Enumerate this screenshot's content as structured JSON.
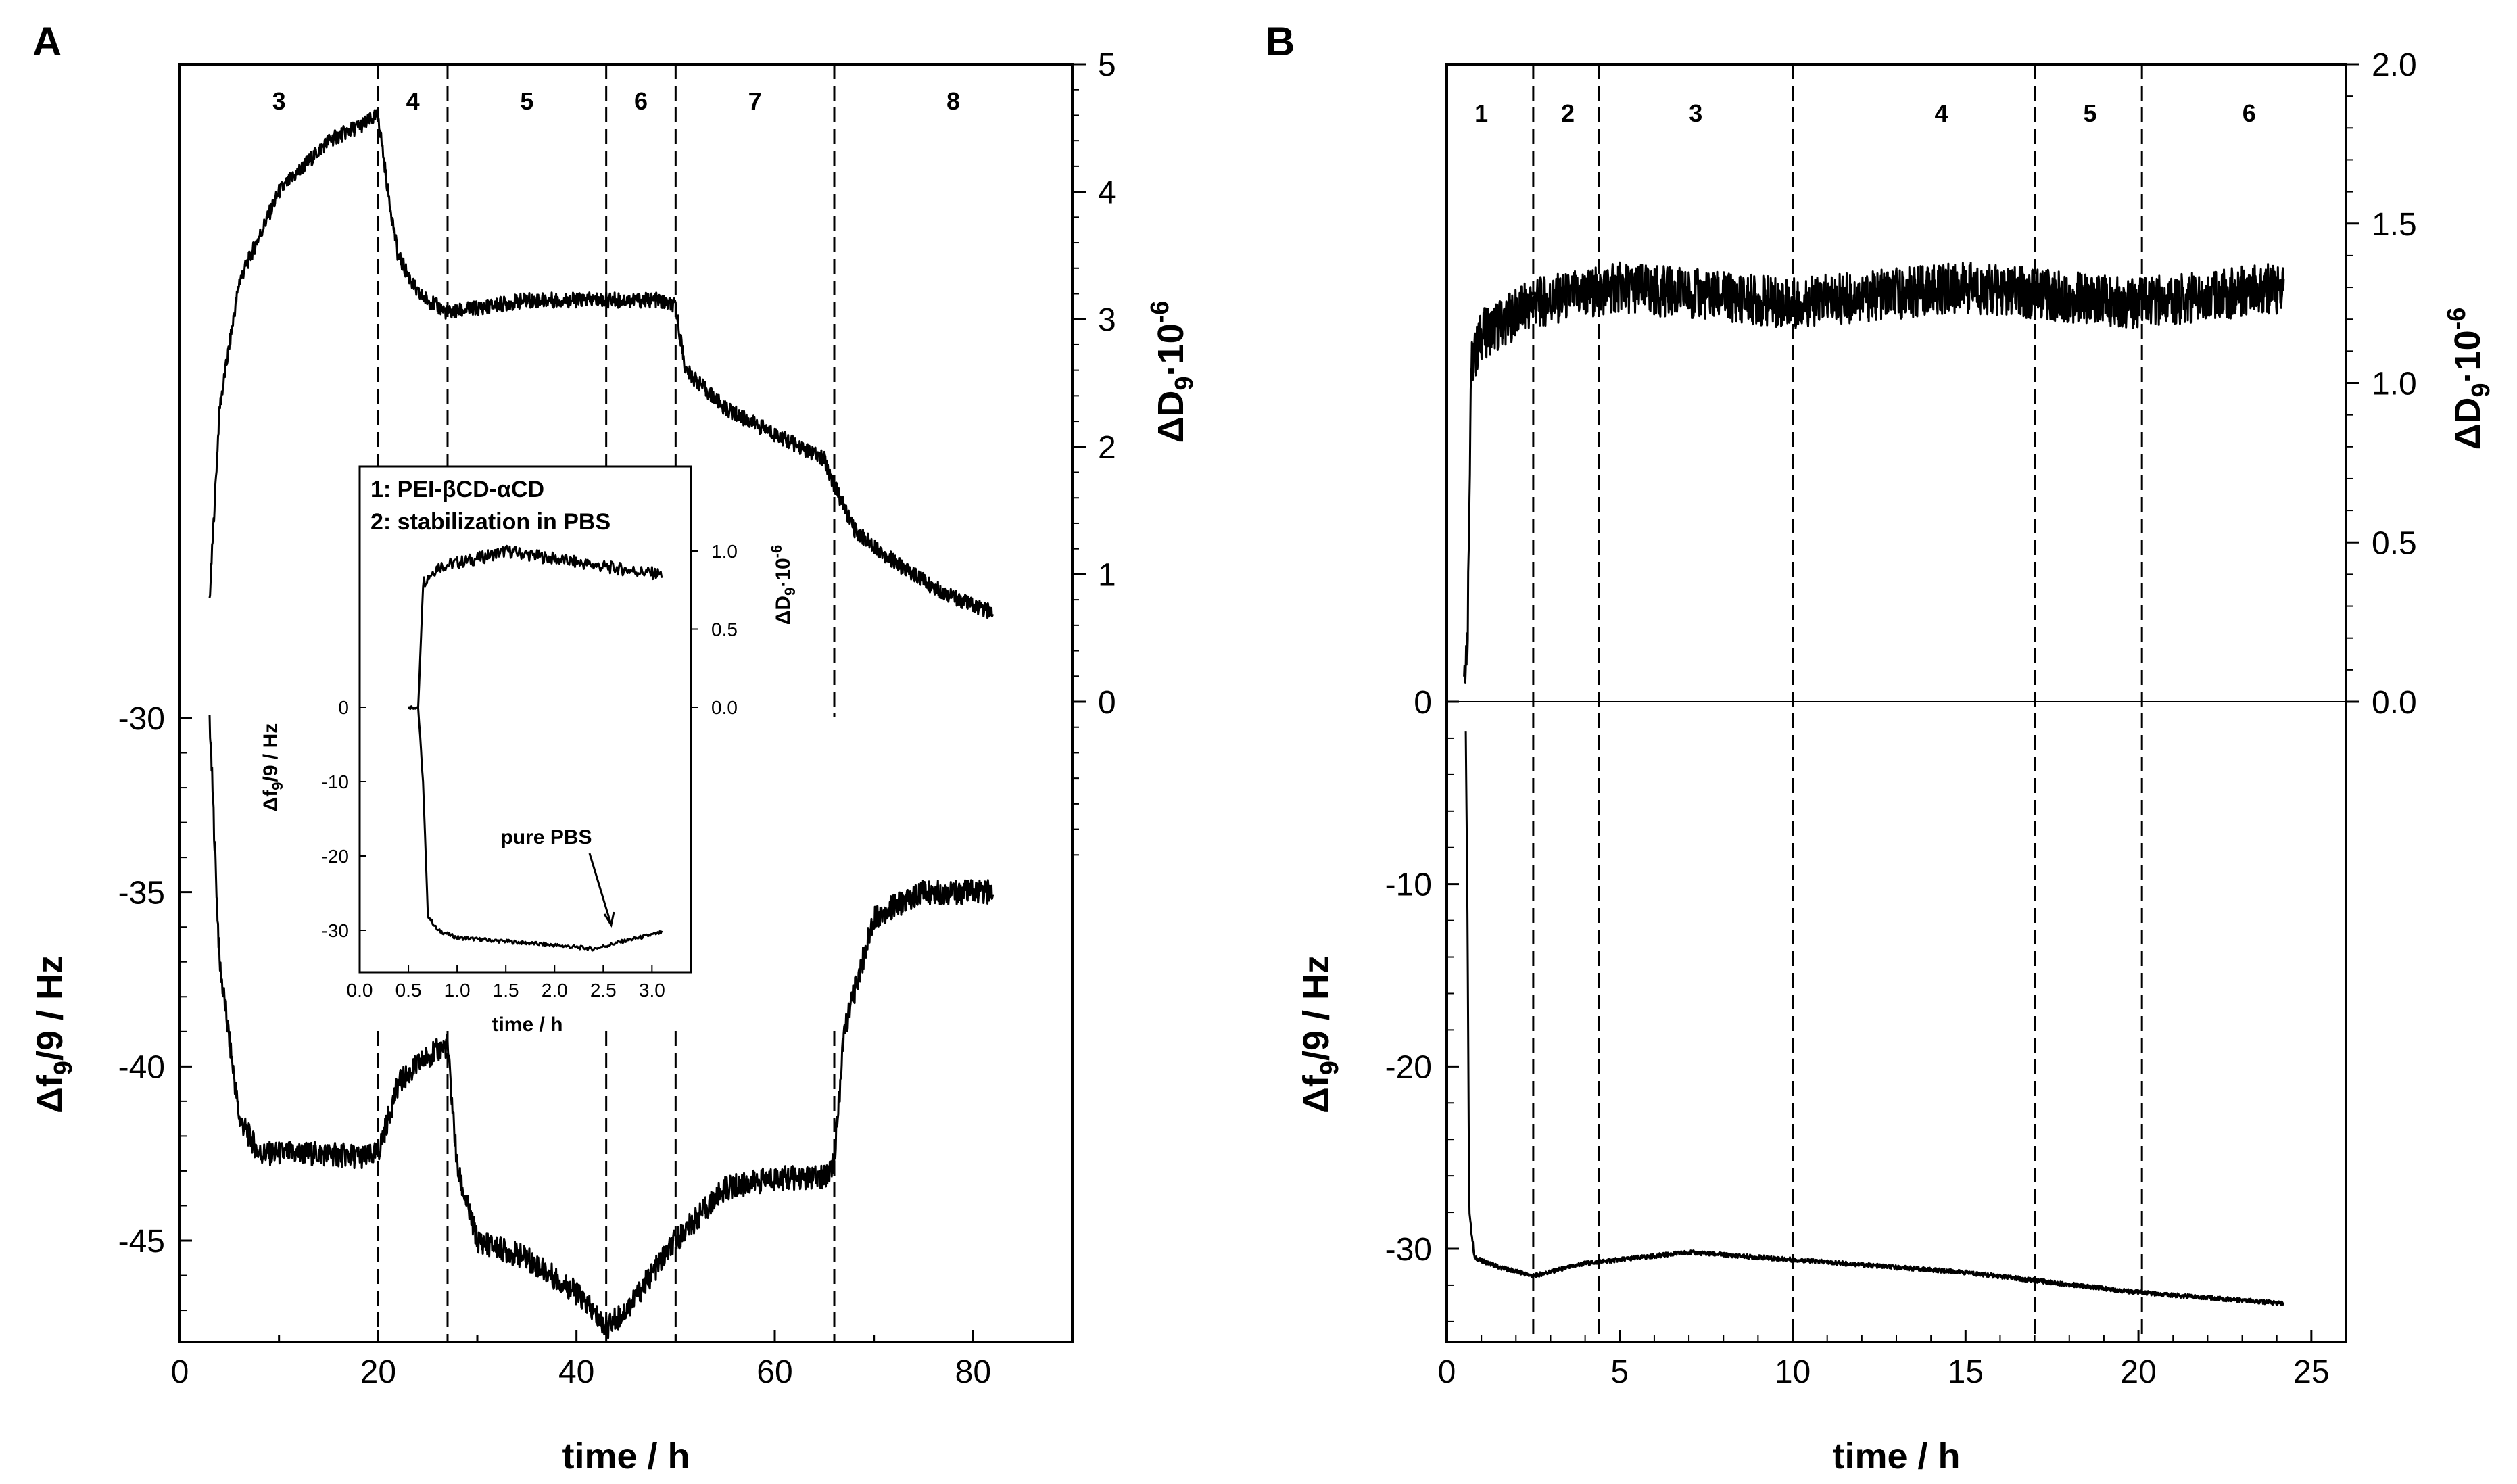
{
  "chart_data": [
    {
      "panel": "A",
      "type": "line",
      "xlabel": "time / h",
      "ylabel_left": "Δf9/9 / Hz",
      "ylabel_right": "ΔD9·10-6",
      "xlim": [
        0,
        90
      ],
      "x_ticks": [
        "0",
        "20",
        "40",
        "60",
        "80"
      ],
      "y_left_ticks": [
        "-30",
        "-35",
        "-40",
        "-45"
      ],
      "y_right_ticks": [
        "5",
        "4",
        "3",
        "2",
        "1",
        "0"
      ],
      "segment_boundaries_x": [
        20,
        27,
        43,
        50,
        66
      ],
      "segment_labels": [
        "3",
        "4",
        "5",
        "6",
        "7",
        "8"
      ],
      "series": [
        {
          "name": "ΔD9",
          "axis": "right",
          "points": [
            [
              3,
              0.8
            ],
            [
              4,
              2.3
            ],
            [
              6,
              3.3
            ],
            [
              10,
              4.0
            ],
            [
              15,
              4.4
            ],
            [
              19,
              4.55
            ],
            [
              20,
              4.6
            ],
            [
              21,
              4.0
            ],
            [
              22,
              3.5
            ],
            [
              24,
              3.2
            ],
            [
              27,
              3.05
            ],
            [
              35,
              3.15
            ],
            [
              43,
              3.15
            ],
            [
              48,
              3.15
            ],
            [
              50,
              3.1
            ],
            [
              51,
              2.6
            ],
            [
              55,
              2.3
            ],
            [
              60,
              2.1
            ],
            [
              65,
              1.9
            ],
            [
              66,
              1.7
            ],
            [
              68,
              1.35
            ],
            [
              72,
              1.1
            ],
            [
              76,
              0.9
            ],
            [
              80,
              0.75
            ],
            [
              82,
              0.7
            ]
          ]
        },
        {
          "name": "Δf9/9",
          "axis": "left",
          "points": [
            [
              3,
              -30
            ],
            [
              4,
              -37
            ],
            [
              6,
              -41.5
            ],
            [
              8,
              -42.5
            ],
            [
              14,
              -42.5
            ],
            [
              19,
              -42.6
            ],
            [
              20,
              -42.5
            ],
            [
              22,
              -40.5
            ],
            [
              25,
              -39.7
            ],
            [
              27,
              -39.4
            ],
            [
              28,
              -43
            ],
            [
              30,
              -45
            ],
            [
              35,
              -45.5
            ],
            [
              40,
              -46.5
            ],
            [
              43,
              -47.5
            ],
            [
              45,
              -47
            ],
            [
              50,
              -45
            ],
            [
              55,
              -43.5
            ],
            [
              60,
              -43.2
            ],
            [
              65,
              -43.2
            ],
            [
              66,
              -42.7
            ],
            [
              67,
              -39
            ],
            [
              70,
              -35.7
            ],
            [
              75,
              -35
            ],
            [
              82,
              -35
            ]
          ]
        }
      ],
      "inset": {
        "legend": [
          "1: PEI-βCD-αCD",
          "2: stabilization in PBS"
        ],
        "xlabel": "time / h",
        "ylabel_left": "Δf9/9 / Hz",
        "ylabel_right": "ΔD9·10-6",
        "x_ticks": [
          "0.0",
          "0.5",
          "1.0",
          "1.5",
          "2.0",
          "2.5",
          "3.0"
        ],
        "y_left_ticks": [
          "0",
          "-10",
          "-20",
          "-30"
        ],
        "y_right_ticks": [
          "1.0",
          "0.5",
          "0.0"
        ],
        "annotation": "pure PBS",
        "series": [
          {
            "name": "ΔD9",
            "axis": "right",
            "points": [
              [
                0.6,
                0.0
              ],
              [
                0.65,
                0.8
              ],
              [
                0.8,
                0.9
              ],
              [
                1.2,
                0.95
              ],
              [
                1.5,
                1.0
              ],
              [
                2.0,
                0.95
              ],
              [
                2.5,
                0.9
              ],
              [
                3.1,
                0.85
              ]
            ]
          },
          {
            "name": "Δf9/9",
            "axis": "left",
            "points": [
              [
                0.5,
                0
              ],
              [
                0.6,
                0
              ],
              [
                0.65,
                -10
              ],
              [
                0.7,
                -28
              ],
              [
                0.8,
                -30
              ],
              [
                1.0,
                -31
              ],
              [
                1.5,
                -31.5
              ],
              [
                2.0,
                -32
              ],
              [
                2.4,
                -32.5
              ],
              [
                2.7,
                -31.5
              ],
              [
                3.1,
                -30.3
              ]
            ]
          }
        ]
      }
    },
    {
      "panel": "B",
      "type": "line",
      "xlabel": "time / h",
      "ylabel_left": "Δf9/9 / Hz",
      "ylabel_right": "ΔD9·10-6",
      "xlim": [
        0,
        26
      ],
      "x_ticks": [
        "0",
        "5",
        "10",
        "15",
        "20",
        "25"
      ],
      "y_left_ticks": [
        "0",
        "-10",
        "-20",
        "-30"
      ],
      "y_right_ticks": [
        "2.0",
        "1.5",
        "1.0",
        "0.5",
        "0.0"
      ],
      "segment_boundaries_x": [
        2.5,
        4.4,
        10,
        17,
        20.1
      ],
      "segment_labels": [
        "1",
        "2",
        "3",
        "4",
        "5",
        "6"
      ],
      "series": [
        {
          "name": "ΔD9",
          "axis": "right",
          "points": [
            [
              0.5,
              0.1
            ],
            [
              0.6,
              0.2
            ],
            [
              0.7,
              1.05
            ],
            [
              1.0,
              1.15
            ],
            [
              2.5,
              1.25
            ],
            [
              5,
              1.3
            ],
            [
              10,
              1.25
            ],
            [
              15,
              1.3
            ],
            [
              20,
              1.25
            ],
            [
              24.2,
              1.3
            ]
          ]
        },
        {
          "name": "Δf9/9",
          "axis": "left",
          "points": [
            [
              0.55,
              -1.5
            ],
            [
              0.6,
              -12
            ],
            [
              0.65,
              -28
            ],
            [
              0.8,
              -30.5
            ],
            [
              1.5,
              -31
            ],
            [
              2.5,
              -31.5
            ],
            [
              4,
              -30.8
            ],
            [
              7,
              -30.2
            ],
            [
              10,
              -30.6
            ],
            [
              15,
              -31.3
            ],
            [
              20,
              -32.4
            ],
            [
              24.2,
              -33
            ]
          ]
        }
      ]
    }
  ],
  "labels": {
    "panel_a": "A",
    "panel_b": "B",
    "xlabel": "time / h",
    "ylabel_left_main": "Δf",
    "ylabel_left_sub": "9",
    "ylabel_left_rest": "/9 / Hz",
    "ylabel_right_main": "ΔD",
    "ylabel_right_sub": "9",
    "ylabel_right_dot": "·10",
    "ylabel_right_sup": "-6",
    "inset_legend_1": "1: PEI-βCD-αCD",
    "inset_legend_2": "2: stabilization in PBS",
    "inset_xlabel": "time / h",
    "inset_annotation": "pure PBS"
  }
}
